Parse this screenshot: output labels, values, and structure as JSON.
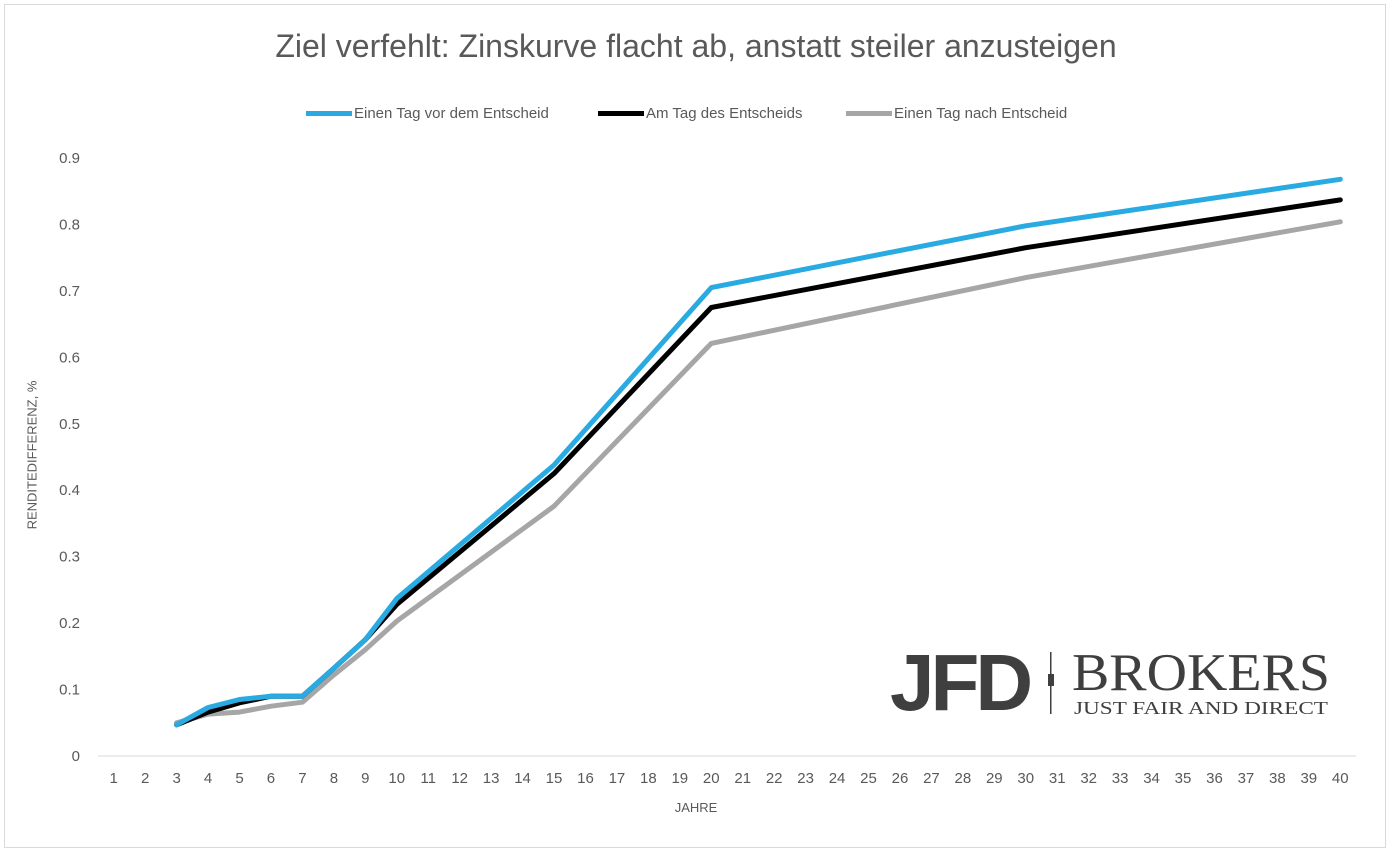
{
  "chart_data": {
    "type": "line",
    "title": "Ziel verfehlt: Zinskurve flacht ab, anstatt steiler anzusteigen",
    "xlabel": "JAHRE",
    "ylabel": "RENDITEDIFFERENZ, %",
    "ylim": [
      0,
      0.9
    ],
    "yticks": [
      "0",
      "0.1",
      "0.2",
      "0.3",
      "0.4",
      "0.5",
      "0.6",
      "0.7",
      "0.8",
      "0.9"
    ],
    "categories": [
      "1",
      "2",
      "3",
      "4",
      "5",
      "6",
      "7",
      "8",
      "9",
      "10",
      "11",
      "12",
      "13",
      "14",
      "15",
      "16",
      "17",
      "18",
      "19",
      "20",
      "21",
      "22",
      "23",
      "24",
      "25",
      "26",
      "27",
      "28",
      "29",
      "30",
      "31",
      "32",
      "33",
      "34",
      "35",
      "36",
      "37",
      "38",
      "39",
      "40"
    ],
    "legend_position": "top",
    "grid": false,
    "series": [
      {
        "name": "Einen Tag vor dem Entscheid",
        "color": "#29abe2",
        "points": [
          [
            3,
            0.047
          ],
          [
            4,
            0.073
          ],
          [
            5,
            0.085
          ],
          [
            6,
            0.09
          ],
          [
            7,
            0.09
          ],
          [
            8,
            0.132
          ],
          [
            9,
            0.175
          ],
          [
            10,
            0.237
          ],
          [
            15,
            0.438
          ],
          [
            20,
            0.705
          ],
          [
            30,
            0.798
          ],
          [
            40,
            0.868
          ]
        ]
      },
      {
        "name": "Am Tag des Entscheids",
        "color": "#000000",
        "points": [
          [
            3,
            0.047
          ],
          [
            4,
            0.066
          ],
          [
            5,
            0.08
          ],
          [
            6,
            0.09
          ],
          [
            7,
            0.09
          ],
          [
            8,
            0.132
          ],
          [
            9,
            0.175
          ],
          [
            10,
            0.228
          ],
          [
            15,
            0.425
          ],
          [
            20,
            0.675
          ],
          [
            30,
            0.765
          ],
          [
            40,
            0.837
          ]
        ]
      },
      {
        "name": "Einen Tag nach Entscheid",
        "color": "#a6a6a6",
        "points": [
          [
            3,
            0.05
          ],
          [
            4,
            0.063
          ],
          [
            5,
            0.066
          ],
          [
            6,
            0.075
          ],
          [
            7,
            0.081
          ],
          [
            8,
            0.122
          ],
          [
            9,
            0.16
          ],
          [
            10,
            0.203
          ],
          [
            15,
            0.376
          ],
          [
            20,
            0.621
          ],
          [
            30,
            0.72
          ],
          [
            40,
            0.804
          ]
        ]
      }
    ]
  },
  "logo": {
    "mark": "JFD",
    "name": "BROKERS",
    "tagline": "JUST FAIR AND DIRECT",
    "color": "#3f3f3f"
  }
}
